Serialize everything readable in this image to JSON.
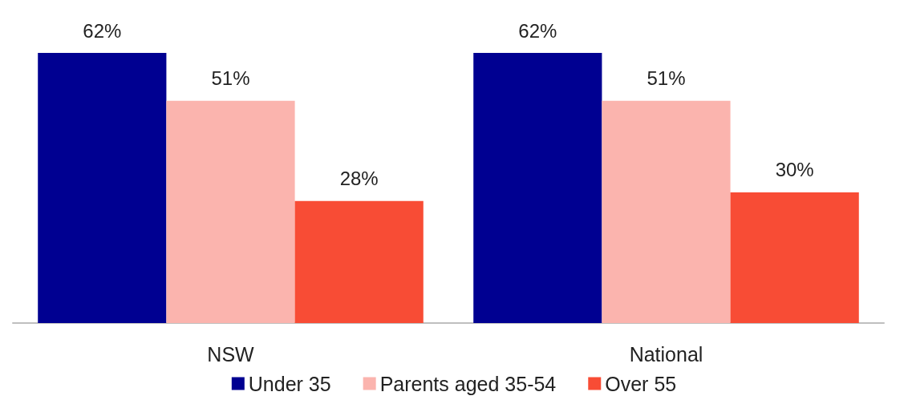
{
  "chart_data": {
    "type": "bar",
    "categories": [
      "NSW",
      "National"
    ],
    "series": [
      {
        "name": "Under 35",
        "color": "#000091",
        "values": [
          62,
          62
        ],
        "value_labels": [
          "62%",
          "62%"
        ]
      },
      {
        "name": "Parents aged 35-54",
        "color": "#fbb4ae",
        "values": [
          51,
          51
        ],
        "value_labels": [
          "51%",
          "51%"
        ]
      },
      {
        "name": "Over 55",
        "color": "#f84c35",
        "values": [
          28,
          30
        ],
        "value_labels": [
          "28%",
          "30%"
        ]
      }
    ],
    "legend": "bottom",
    "grid": false,
    "tick_labels": "x"
  }
}
